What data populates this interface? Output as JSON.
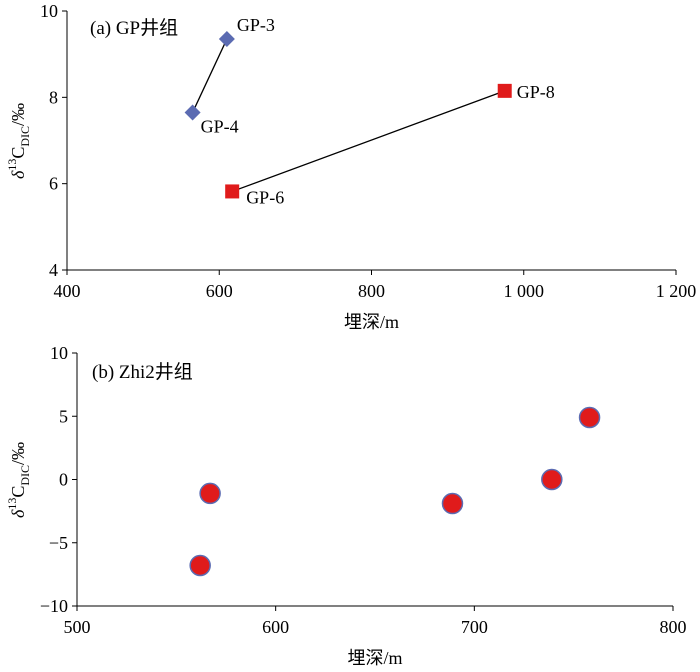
{
  "chart_data": [
    {
      "type": "scatter",
      "title": "(a) GP井组",
      "xlabel": "埋深/m",
      "ylabel": "δ13CDIC/‰",
      "ylabel_parts": {
        "delta": "δ",
        "sup": "13",
        "c": "C",
        "sub": "DIC",
        "unit": "/‰"
      },
      "xlim": [
        400,
        1200
      ],
      "ylim": [
        4,
        10
      ],
      "xticks": [
        400,
        600,
        800,
        1000,
        1200
      ],
      "xtick_labels": [
        "400",
        "600",
        "800",
        "1 000",
        "1 200"
      ],
      "yticks": [
        4,
        6,
        8,
        10
      ],
      "ytick_labels": [
        "4",
        "6",
        "8",
        "10"
      ],
      "grid": false,
      "series": [
        {
          "marker": "diamond",
          "color": "#5b6bb2",
          "connected": true,
          "points": [
            {
              "label": "GP-3",
              "x": 610,
              "y": 9.35
            },
            {
              "label": "GP-4",
              "x": 565,
              "y": 7.65
            }
          ]
        },
        {
          "marker": "square",
          "color": "#e01b1b",
          "connected": true,
          "points": [
            {
              "label": "GP-8",
              "x": 975,
              "y": 8.15
            },
            {
              "label": "GP-6",
              "x": 617,
              "y": 5.82
            }
          ]
        }
      ]
    },
    {
      "type": "scatter",
      "title": "(b) Zhi2井组",
      "xlabel": "埋深/m",
      "ylabel": "δ13CDIC/‰",
      "ylabel_parts": {
        "delta": "δ",
        "sup": "13",
        "c": "C",
        "sub": "DIC",
        "unit": "/‰"
      },
      "xlim": [
        500,
        800
      ],
      "ylim": [
        -10,
        10
      ],
      "xticks": [
        500,
        600,
        700,
        800
      ],
      "xtick_labels": [
        "500",
        "600",
        "700",
        "800"
      ],
      "yticks": [
        -10,
        -5,
        0,
        5,
        10
      ],
      "ytick_labels": [
        "−10",
        "−5",
        "0",
        "5",
        "10"
      ],
      "grid": false,
      "series": [
        {
          "marker": "circle",
          "color": "#e01b1b",
          "edge_color": "#5b6bb2",
          "connected": false,
          "points": [
            {
              "x": 562,
              "y": -6.8
            },
            {
              "x": 567,
              "y": -1.1
            },
            {
              "x": 689,
              "y": -1.9
            },
            {
              "x": 739,
              "y": 0.0
            },
            {
              "x": 758,
              "y": 4.9
            }
          ]
        }
      ]
    }
  ]
}
